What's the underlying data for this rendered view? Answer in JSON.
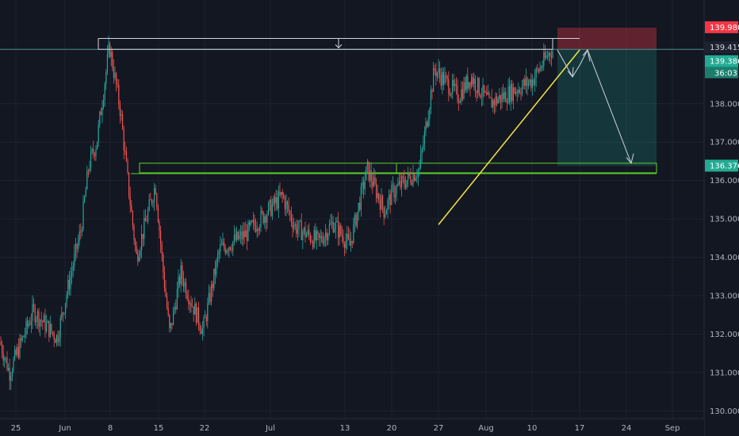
{
  "chart_data": {
    "type": "candlestick",
    "y_axis": {
      "ticks": [
        130.0,
        131.0,
        132.0,
        133.0,
        134.0,
        135.0,
        136.0,
        137.0,
        138.0
      ],
      "tick_labels": [
        "130.000",
        "131.000",
        "132.000",
        "133.000",
        "134.000",
        "135.000",
        "136.000",
        "137.000",
        "138.000"
      ],
      "range": [
        129.8,
        140.7
      ]
    },
    "x_axis": {
      "tick_labels": [
        "25",
        "Jun",
        "8",
        "15",
        "22",
        "Jul",
        "13",
        "20",
        "27",
        "Aug",
        "10",
        "17",
        "24",
        "Sep"
      ]
    },
    "price_badges": [
      {
        "value": 139.98,
        "label": "139.980",
        "color": "#f23645"
      },
      {
        "value": 139.415,
        "label": "139.415",
        "color": "#1e2230"
      },
      {
        "value": 139.386,
        "label": "139.386",
        "color": "#22ab94"
      },
      {
        "value": 136.376,
        "label": "136.376",
        "color": "#22ab94"
      }
    ],
    "countdown_label": "36:03",
    "price_path": [
      {
        "t": 0,
        "p": 131.8
      },
      {
        "t": 1,
        "p": 131.0
      },
      {
        "t": 2,
        "p": 132.6
      },
      {
        "t": 3,
        "p": 131.9
      },
      {
        "t": 4,
        "p": 133.8
      },
      {
        "t": 5,
        "p": 134.7
      },
      {
        "t": 6,
        "p": 136.4
      },
      {
        "t": 7,
        "p": 137.0
      },
      {
        "t": 8,
        "p": 139.5
      },
      {
        "t": 9,
        "p": 137.8
      },
      {
        "t": 10,
        "p": 136.2
      },
      {
        "t": 11,
        "p": 134.0
      },
      {
        "t": 12,
        "p": 135.9
      },
      {
        "t": 13,
        "p": 133.8
      },
      {
        "t": 14,
        "p": 132.0
      },
      {
        "t": 15,
        "p": 133.6
      },
      {
        "t": 16,
        "p": 132.9
      },
      {
        "t": 17,
        "p": 132.1
      },
      {
        "t": 18,
        "p": 134.2
      },
      {
        "t": 19,
        "p": 134.6
      },
      {
        "t": 20,
        "p": 135.6
      },
      {
        "t": 21,
        "p": 134.8
      },
      {
        "t": 22,
        "p": 134.4
      },
      {
        "t": 23,
        "p": 134.9
      },
      {
        "t": 24,
        "p": 134.3
      },
      {
        "t": 25,
        "p": 136.3
      },
      {
        "t": 26,
        "p": 135.2
      },
      {
        "t": 27,
        "p": 135.7
      },
      {
        "t": 28,
        "p": 136.3
      },
      {
        "t": 29,
        "p": 138.9
      },
      {
        "t": 30,
        "p": 138.2
      },
      {
        "t": 31,
        "p": 138.7
      },
      {
        "t": 32,
        "p": 138.0
      },
      {
        "t": 33,
        "p": 138.6
      },
      {
        "t": 34,
        "p": 139.4
      }
    ],
    "drawings": {
      "resistance_top": 139.7,
      "resistance_lower": 139.415,
      "support_zone": [
        136.2,
        136.45
      ],
      "short_position": {
        "entry": 139.415,
        "stop": 139.98,
        "target": 136.376
      },
      "trendline": {
        "from_price": 134.85,
        "to_price": 139.4
      }
    }
  }
}
